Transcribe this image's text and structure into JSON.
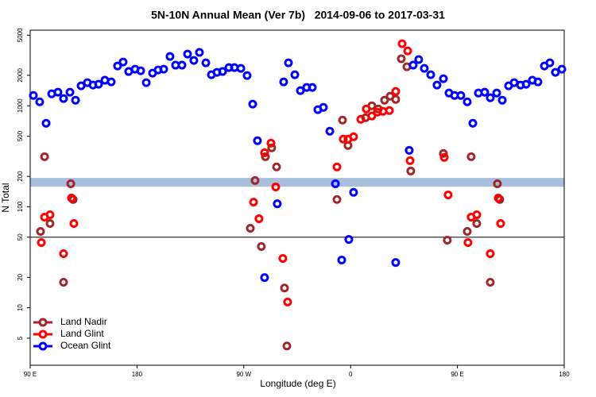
{
  "chart_data": {
    "type": "scatter",
    "title": "5N-10N Annual Mean (Ver 7b)   2014-09-06 to 2017-03-31",
    "x_label": "Longitude (deg E)",
    "y_label": "N Total",
    "ylog": true,
    "xlim": [
      90,
      540
    ],
    "ylim": [
      2.7,
      5600
    ],
    "xticks": [
      {
        "value": 90,
        "label": "90 E"
      },
      180,
      {
        "value": 270,
        "label": "90 W"
      },
      {
        "value": 360,
        "label": "0"
      },
      {
        "value": 450,
        "label": "90 E"
      },
      {
        "value": 540,
        "label": "180"
      }
    ],
    "yticks": [
      5,
      10,
      20,
      50,
      100,
      200,
      500,
      1000,
      2000,
      5000
    ],
    "hline": 50,
    "band": [
      158,
      193
    ],
    "band_color": "#a9bfdc",
    "legend": "bottom-left",
    "series": [
      {
        "name": "Land Nadir",
        "color": "#a0282c",
        "x": [
          102.1,
          98.7,
          106.7,
          118.1,
          124.2,
          126.2,
          275.5,
          279.5,
          284.8,
          288.2,
          293.5,
          297.6,
          304.3,
          306.3,
          348.5,
          353.2,
          357.8,
          372.6,
          377.9,
          383.3,
          388.6,
          393.3,
          398.0,
          402.7,
          407.4,
          410.7,
          438.2,
          441.5,
          461.6,
          458.3,
          466.3,
          477.7,
          483.7,
          485.7
        ],
        "values": [
          313,
          57,
          68.3,
          17.9,
          169,
          118,
          61.3,
          182,
          40.4,
          313,
          383,
          248,
          15.7,
          4.19,
          118,
          721,
          404,
          762,
          1000,
          930,
          1135,
          1242,
          1156,
          2917,
          2432,
          226,
          337,
          46.7,
          313,
          57,
          68.3,
          17.9,
          169,
          118
        ]
      },
      {
        "name": "Land Glint",
        "color": "#ff0000",
        "x": [
          99.4,
          102.1,
          106.7,
          118.1,
          124.8,
          126.8,
          278.2,
          282.8,
          287.5,
          292.9,
          296.9,
          302.9,
          306.9,
          348.5,
          353.8,
          357.8,
          362.5,
          368.6,
          373.2,
          377.9,
          382.6,
          387.3,
          392.7,
          398.0,
          403.4,
          408.1,
          410.1,
          438.9,
          442.2,
          458.9,
          461.6,
          466.3,
          477.7,
          484.4,
          486.4
        ],
        "values": [
          44.2,
          79,
          83.4,
          34.3,
          122,
          68.3,
          111,
          76.2,
          343,
          427,
          157,
          30.8,
          11.4,
          248,
          467,
          467,
          493,
          735,
          930,
          791,
          865,
          881,
          897,
          1387,
          4111,
          3491,
          286,
          308,
          131,
          44.2,
          79,
          83.4,
          34.3,
          122,
          68.3
        ]
      },
      {
        "name": "Ocean Glint",
        "color": "#0000ff",
        "x": [
          92.7,
          98.0,
          103.4,
          108.1,
          113.4,
          118.1,
          123.5,
          128.2,
          132.9,
          138.2,
          142.9,
          147.6,
          152.9,
          158.3,
          163.6,
          168.3,
          173.0,
          178.4,
          183.1,
          187.8,
          193.1,
          197.8,
          202.5,
          207.8,
          212.5,
          217.9,
          222.6,
          227.9,
          232.6,
          238.0,
          242.7,
          247.4,
          252.1,
          257.4,
          262.1,
          267.5,
          272.8,
          277.5,
          281.5,
          287.5,
          298.2,
          303.6,
          307.6,
          313.0,
          317.7,
          323.0,
          327.7,
          332.4,
          337.1,
          342.5,
          347.2,
          352.5,
          358.5,
          362.5,
          398.0,
          409.4,
          412.7,
          417.4,
          422.1,
          427.5,
          432.8,
          438.2,
          442.9,
          447.6,
          452.9,
          458.3,
          463.0,
          467.7,
          473.0,
          477.7,
          483.1,
          487.8,
          493.1,
          497.8,
          503.2,
          507.9,
          513.2,
          517.9,
          523.3,
          527.9,
          532.6,
          538.0
        ],
        "values": [
          1265,
          1094,
          671,
          1312,
          1361,
          1178,
          1361,
          1135,
          1574,
          1692,
          1602,
          1633,
          1789,
          1723,
          2477,
          2712,
          2183,
          2303,
          2220,
          1692,
          2104,
          2262,
          2303,
          3076,
          2523,
          2523,
          3250,
          2812,
          3373,
          2661,
          2028,
          2143,
          2183,
          2388,
          2388,
          2344,
          1991,
          1038,
          451,
          19.9,
          107,
          1723,
          2661,
          2028,
          1413,
          1518,
          1518,
          914,
          964,
          560,
          169,
          29.7,
          47.5,
          139,
          28.1,
          362,
          2523,
          2865,
          2344,
          2028,
          1602,
          1853,
          1336,
          1265,
          1265,
          1094,
          671,
          1336,
          1361,
          1200,
          1336,
          1135,
          1574,
          1692,
          1602,
          1633,
          1789,
          1723,
          2477,
          2661,
          2143,
          2303
        ]
      }
    ]
  }
}
